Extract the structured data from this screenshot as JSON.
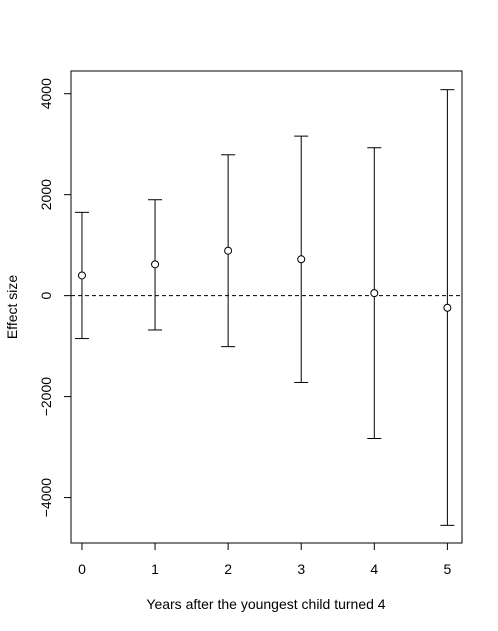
{
  "chart_data": {
    "type": "scatter",
    "title": "",
    "xlabel": "Years after the youngest child turned 4",
    "ylabel": "Effect size",
    "xlim": [
      -0.15,
      5.2
    ],
    "ylim": [
      -4900,
      4450
    ],
    "x_ticks": [
      0,
      1,
      2,
      3,
      4,
      5
    ],
    "x_tick_labels": [
      "0",
      "1",
      "2",
      "3",
      "4",
      "5"
    ],
    "y_ticks": [
      -4000,
      -2000,
      0,
      2000,
      4000
    ],
    "y_tick_labels": [
      "−4000",
      "−2000",
      "0",
      "2000",
      "4000"
    ],
    "reference_line": {
      "y": 0,
      "style": "dashed"
    },
    "grid": false,
    "points": [
      {
        "x": 0,
        "y": 400,
        "lower": -850,
        "upper": 1650
      },
      {
        "x": 1,
        "y": 620,
        "lower": -680,
        "upper": 1900
      },
      {
        "x": 2,
        "y": 890,
        "lower": -1010,
        "upper": 2790
      },
      {
        "x": 3,
        "y": 720,
        "lower": -1720,
        "upper": 3160
      },
      {
        "x": 4,
        "y": 50,
        "lower": -2830,
        "upper": 2930
      },
      {
        "x": 5,
        "y": -240,
        "lower": -4550,
        "upper": 4080
      }
    ]
  }
}
